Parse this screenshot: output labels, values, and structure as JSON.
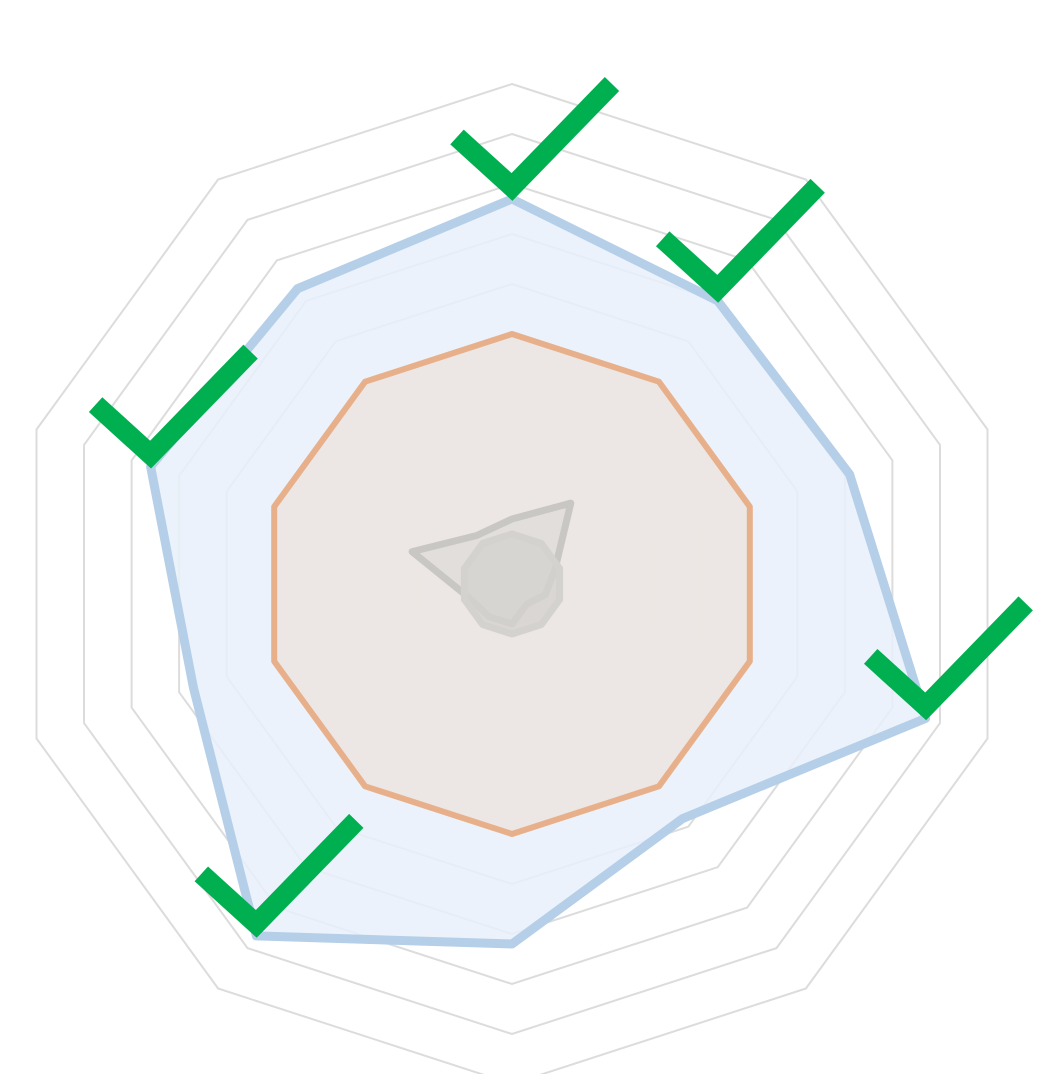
{
  "chart_data": {
    "type": "radar",
    "axes_count": 10,
    "rmax": 10,
    "grid_levels": [
      2,
      3,
      4,
      5,
      6,
      7,
      8,
      9,
      10
    ],
    "grid": true,
    "series": [
      {
        "values": [
          7.7,
          7.0,
          7.1,
          8.7,
          5.8,
          7.2,
          8.7,
          6.7,
          7.6,
          7.3
        ],
        "fill": "#e7f0fa",
        "stroke": "#b5cfe8",
        "fill_opacity": 0.85
      },
      {
        "values": [
          5.0,
          5.0,
          5.0,
          5.0,
          5.0,
          5.0,
          5.0,
          5.0,
          5.0,
          5.0
        ],
        "fill": "#ece6e1",
        "stroke": "#e7b08a",
        "fill_opacity": 0.9
      },
      {
        "values": [
          1.3,
          2.0,
          0.9,
          0.7,
          0.5,
          0.8,
          0.8,
          0.9,
          2.1,
          1.2
        ],
        "fill": "#d9d7d4",
        "stroke": "#c9c7c4",
        "fill_opacity": 0.55
      },
      {
        "values": [
          1.0,
          1.0,
          1.0,
          1.0,
          1.0,
          1.0,
          1.0,
          1.0,
          1.0,
          1.0
        ],
        "fill": "#d4d2cf",
        "stroke": "#d4d2cf",
        "fill_opacity": 0.8
      }
    ],
    "check_axes": [
      0,
      1,
      3,
      6,
      8
    ],
    "check_color": "#00b050"
  }
}
